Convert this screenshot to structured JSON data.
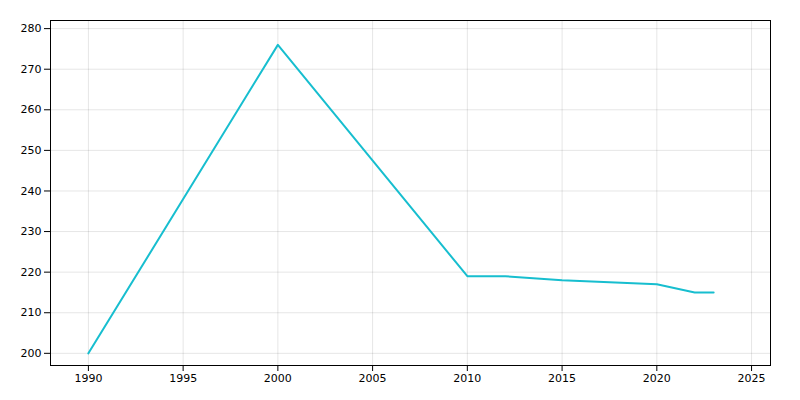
{
  "chart_data": {
    "type": "line",
    "x": [
      1990,
      2000,
      2010,
      2012,
      2015,
      2020,
      2022,
      2023
    ],
    "values": [
      200,
      276,
      219,
      219,
      218,
      217,
      215,
      215
    ],
    "color": "#17becf",
    "xlim": [
      1988,
      2026
    ],
    "ylim": [
      197,
      282
    ],
    "xticks": [
      1990,
      1995,
      2000,
      2005,
      2010,
      2015,
      2020,
      2025
    ],
    "yticks": [
      200,
      210,
      220,
      230,
      240,
      250,
      260,
      270,
      280
    ],
    "grid": true
  }
}
